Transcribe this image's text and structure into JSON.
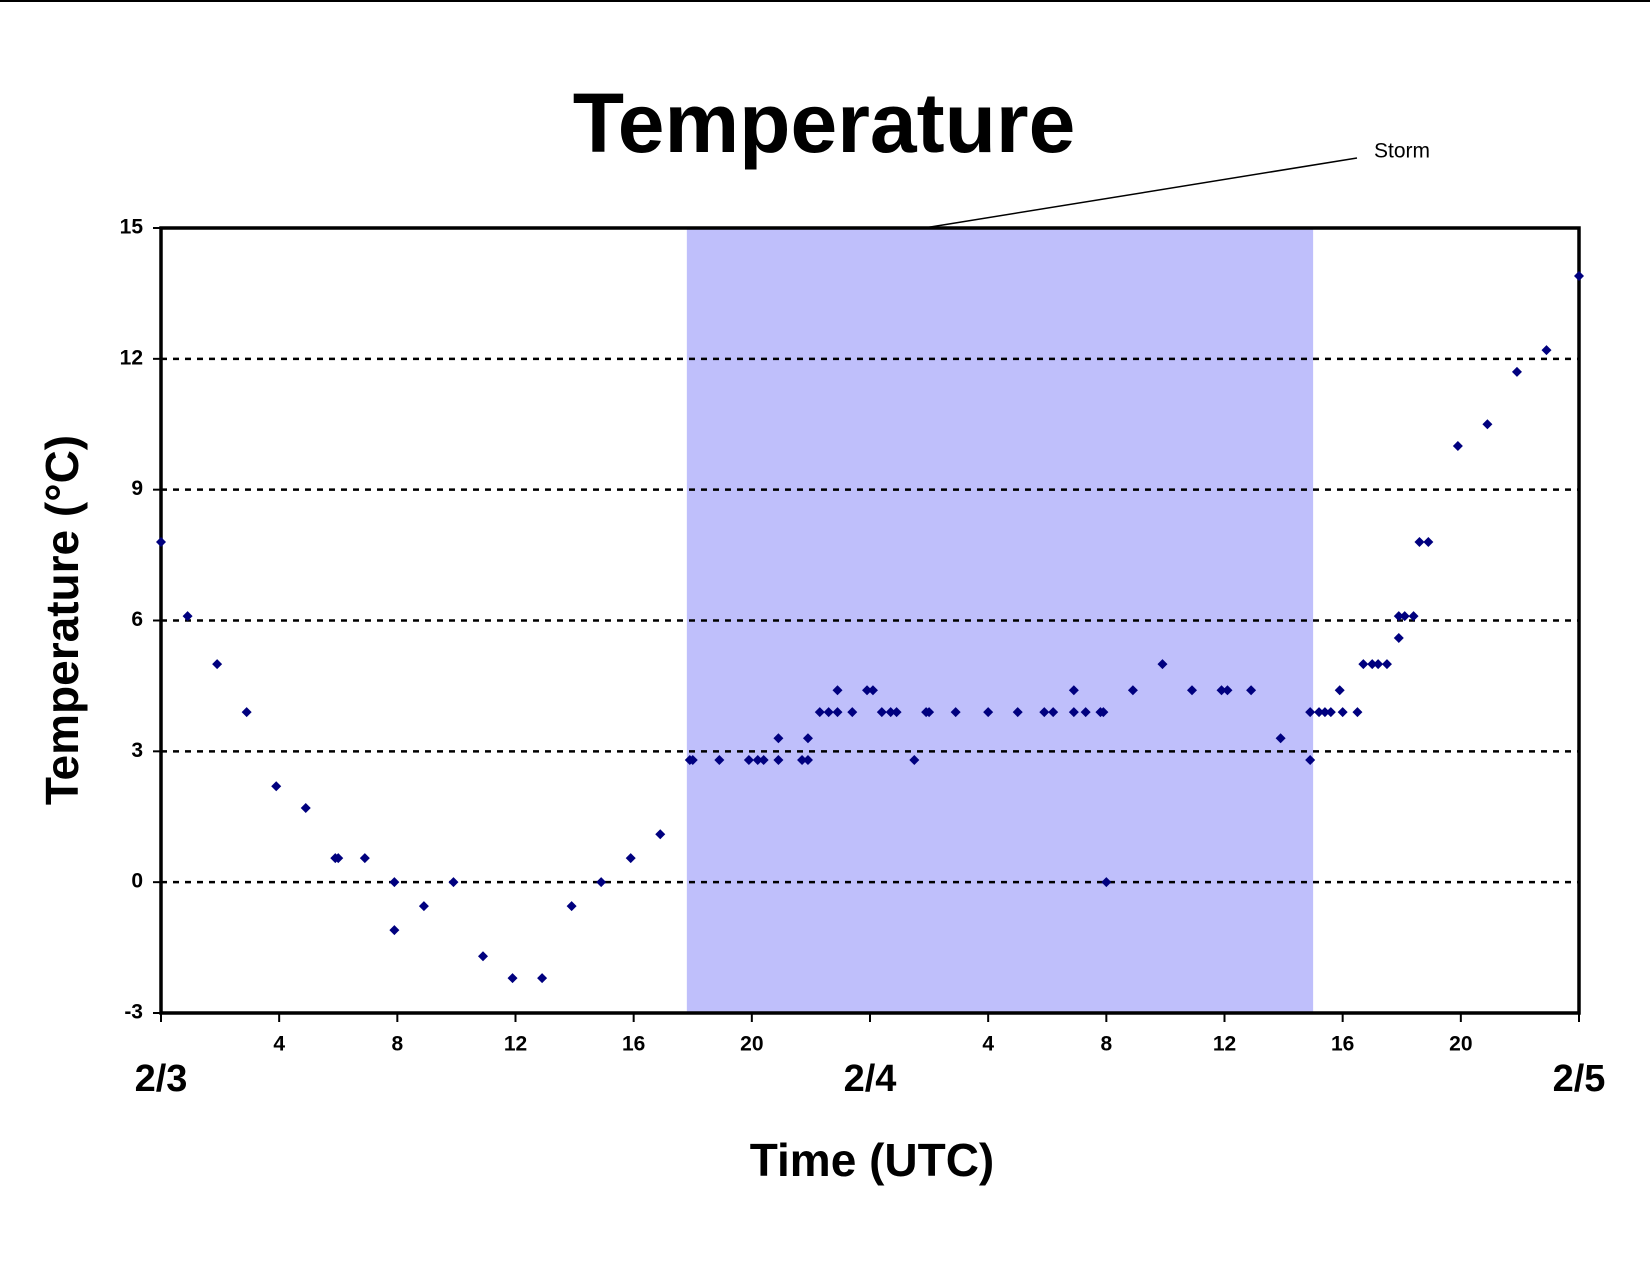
{
  "chart_data": {
    "type": "scatter",
    "title": "Temperature",
    "x_label": "Time (UTC)",
    "y_label": "Temperature (°C)",
    "annotation": "Storm",
    "shaded_region": {
      "x": [
        17.8,
        39
      ],
      "color": "#bfbffb"
    },
    "color": "#00007f",
    "grid": true,
    "xlim": [
      0,
      48
    ],
    "ylim": [
      -3,
      15
    ],
    "yticks": [
      -3,
      0,
      3,
      6,
      9,
      12,
      15
    ],
    "xticks": [
      4,
      8,
      12,
      16,
      20,
      {
        "value": 28,
        "label": "4"
      },
      {
        "value": 32,
        "label": "8"
      },
      {
        "value": 36,
        "label": "12"
      },
      {
        "value": 40,
        "label": "16"
      },
      {
        "value": 44,
        "label": "20"
      }
    ],
    "date_ticks": [
      {
        "value": 0,
        "label": "2/3"
      },
      {
        "value": 24,
        "label": "2/4"
      },
      {
        "value": 48,
        "label": "2/5"
      }
    ],
    "x": [
      0,
      0.9,
      1.9,
      2.9,
      3.9,
      4.9,
      5.9,
      6.0,
      6.9,
      7.9,
      7.9,
      8.9,
      9.9,
      10.9,
      11.9,
      12.9,
      13.9,
      14.9,
      15.9,
      16.9,
      17.9,
      18.0,
      18.9,
      19.9,
      20.2,
      20.4,
      20.9,
      20.9,
      21.7,
      21.9,
      21.9,
      22.3,
      22.6,
      22.9,
      22.9,
      23.4,
      23.9,
      24.1,
      24.4,
      24.7,
      24.9,
      25.5,
      25.9,
      26.0,
      26.9,
      28.0,
      29.0,
      29.9,
      30.2,
      30.9,
      30.9,
      31.3,
      31.8,
      31.9,
      32.0,
      32.9,
      33.9,
      34.9,
      35.9,
      36.1,
      36.9,
      37.9,
      38.9,
      38.9,
      39.2,
      39.4,
      39.6,
      39.9,
      40.0,
      40.5,
      40.7,
      41.0,
      41.2,
      41.5,
      41.9,
      41.9,
      42.1,
      42.4,
      42.6,
      42.9,
      43.9,
      44.9,
      45.9,
      46.9,
      48.0
    ],
    "values": [
      7.8,
      6.1,
      5.0,
      3.9,
      2.2,
      1.7,
      0.55,
      0.55,
      0.55,
      0,
      -1.1,
      -0.55,
      0,
      -1.7,
      -2.2,
      -2.2,
      -0.55,
      0,
      0.55,
      1.1,
      2.8,
      2.8,
      2.8,
      2.8,
      2.8,
      2.8,
      2.8,
      3.3,
      2.8,
      2.8,
      3.3,
      3.9,
      3.9,
      3.9,
      4.4,
      3.9,
      4.4,
      4.4,
      3.9,
      3.9,
      3.9,
      2.8,
      3.9,
      3.9,
      3.9,
      3.9,
      3.9,
      3.9,
      3.9,
      4.4,
      3.9,
      3.9,
      3.9,
      3.9,
      0,
      4.4,
      5.0,
      4.4,
      4.4,
      4.4,
      4.4,
      3.3,
      2.8,
      3.9,
      3.9,
      3.9,
      3.9,
      4.4,
      3.9,
      3.9,
      5.0,
      5.0,
      5.0,
      5.0,
      5.6,
      6.1,
      6.1,
      6.1,
      7.8,
      7.8,
      10.0,
      10.5,
      11.7,
      12.2,
      13.9
    ]
  }
}
